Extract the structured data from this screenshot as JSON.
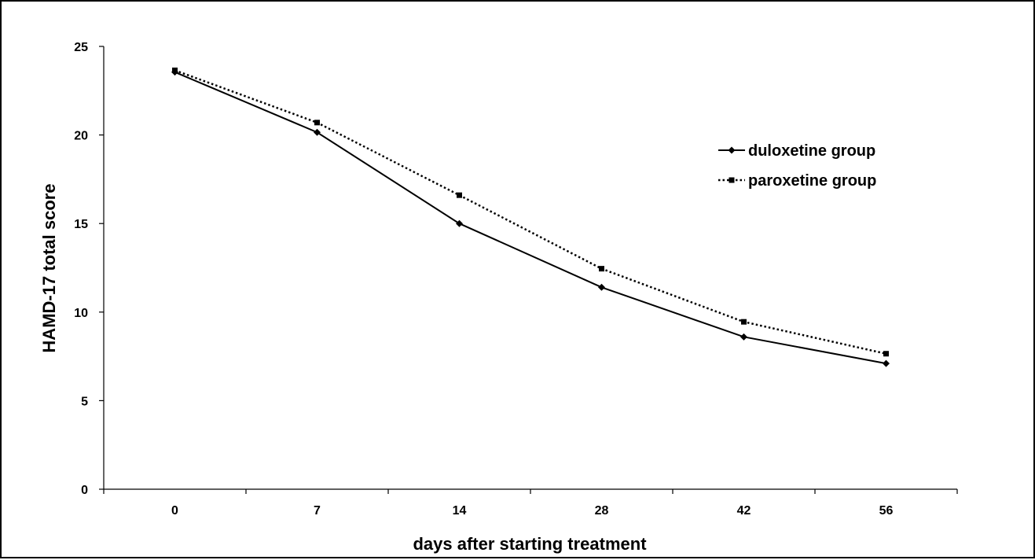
{
  "chart_data": {
    "type": "line",
    "title": "",
    "xlabel": "days after starting treatment",
    "ylabel": "HAMD-17 total score",
    "categories": [
      "0",
      "7",
      "14",
      "28",
      "42",
      "56"
    ],
    "ylim": [
      0,
      25
    ],
    "yticks": [
      0,
      5,
      10,
      15,
      20,
      25
    ],
    "grid": false,
    "legend_position": "right",
    "series": [
      {
        "name": "duloxetine group",
        "values": [
          23.55,
          20.15,
          15.0,
          11.4,
          8.6,
          7.1
        ],
        "line_style": "solid",
        "marker": "diamond",
        "color": "#000000"
      },
      {
        "name": "paroxetine group",
        "values": [
          23.65,
          20.7,
          16.6,
          12.45,
          9.45,
          7.65
        ],
        "line_style": "dotted",
        "marker": "square",
        "color": "#000000"
      }
    ]
  }
}
